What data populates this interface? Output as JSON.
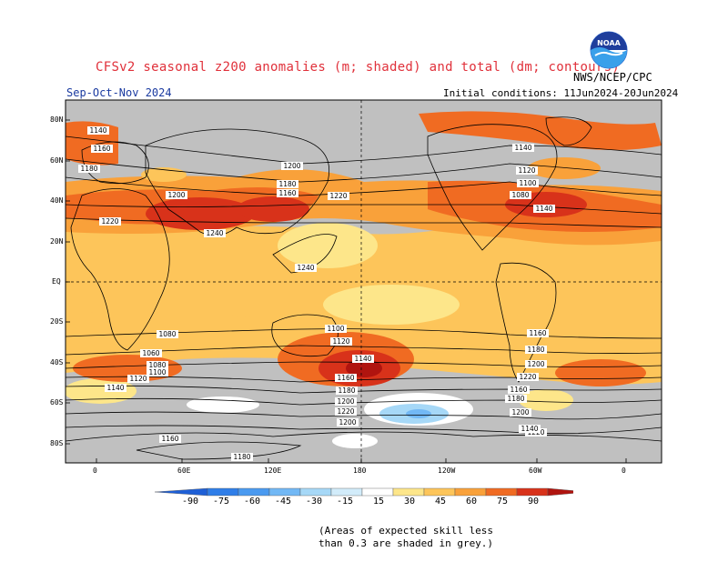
{
  "header": {
    "title": "CFSv2 seasonal z200 anomalies (m; shaded) and total (dm; contours)",
    "source": "NWS/NCEP/CPC",
    "season": "Sep-Oct-Nov 2024",
    "initial_conditions": "Initial conditions: 11Jun2024-20Jun2024"
  },
  "logo": {
    "text": "NOAA"
  },
  "map": {
    "lat_labels": [
      "80N",
      "60N",
      "40N",
      "20N",
      "EQ",
      "20S",
      "40S",
      "60S",
      "80S"
    ],
    "lon_labels": [
      "0",
      "60E",
      "120E",
      "180",
      "120W",
      "60W",
      "0"
    ],
    "contour_labels": [
      "1140",
      "1160",
      "1180",
      "1200",
      "1220",
      "1240",
      "1240",
      "1220",
      "1200",
      "1180",
      "1160",
      "1140",
      "1120",
      "1100",
      "1080",
      "1060",
      "1080",
      "1100",
      "1120",
      "1140",
      "1160",
      "1180",
      "1200",
      "1220",
      "1200",
      "1180",
      "1160",
      "1140",
      "1120",
      "1100",
      "1080",
      "1140",
      "1160",
      "1180",
      "1200",
      "1220",
      "1160",
      "1180",
      "1200",
      "1220",
      "1140"
    ],
    "unskilled_color": "#c0c0c0"
  },
  "colorbar": {
    "labels": [
      "-90",
      "-75",
      "-60",
      "-45",
      "-30",
      "-15",
      "15",
      "30",
      "45",
      "60",
      "75",
      "90"
    ],
    "colors": [
      "#1e5fd6",
      "#2f7ee8",
      "#4a9af0",
      "#72b8f5",
      "#a6d8f7",
      "#d2ecfa",
      "#ffffff",
      "#fde68a",
      "#fdc55a",
      "#f9a13a",
      "#f06b22",
      "#d8321a",
      "#b0140f"
    ]
  },
  "footnote": {
    "line1": "(Areas of expected skill less",
    "line2": "than 0.3 are shaded in grey.)"
  }
}
